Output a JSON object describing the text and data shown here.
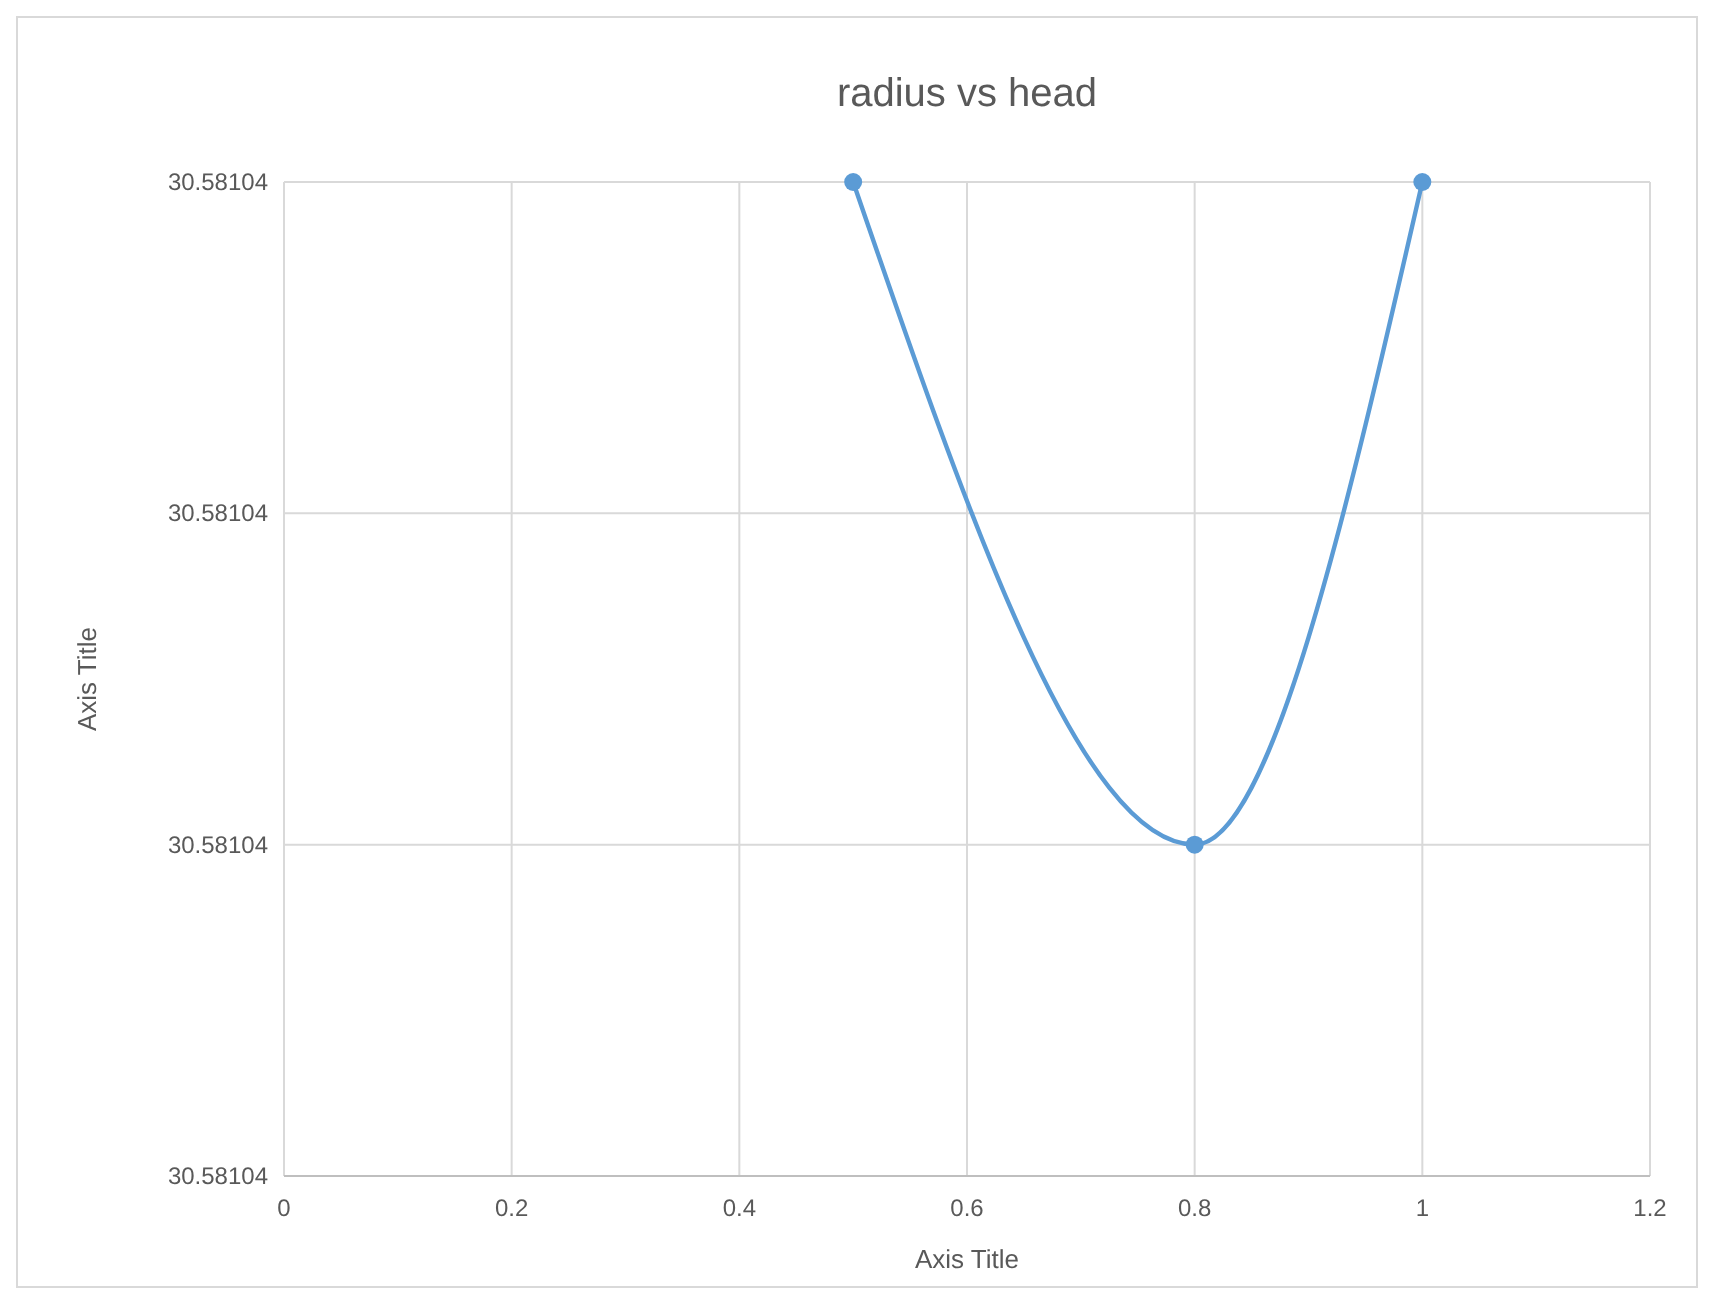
{
  "chart_data": {
    "type": "line",
    "title": "radius vs head",
    "xlabel": "Axis Title",
    "ylabel": "Axis Title",
    "x": [
      0.5,
      0.8,
      1
    ],
    "series": [
      {
        "color": "#5b9bd5",
        "values": [
          30.581041,
          30.581039,
          30.581041
        ]
      }
    ],
    "xlim": [
      0,
      1.2
    ],
    "xticks": [
      0,
      0.2,
      0.4,
      0.6,
      0.8,
      1,
      1.2
    ],
    "ylim": [
      30.581038,
      30.581041
    ],
    "yticks": [
      {
        "value": 30.581038,
        "label": "30.58104"
      },
      {
        "value": 30.581039,
        "label": "30.58104"
      },
      {
        "value": 30.58104,
        "label": "30.58104"
      },
      {
        "value": 30.581041,
        "label": "30.58104"
      }
    ],
    "grid": true,
    "marker": "circle",
    "line_style": "solid"
  }
}
